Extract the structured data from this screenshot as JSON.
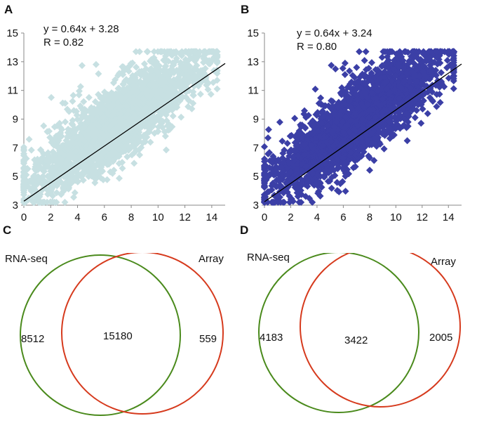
{
  "chart_data": [
    {
      "panel": "A",
      "type": "scatter",
      "point_color": "#c7e0e2",
      "point_shape": "diamond-icon",
      "line_color": "#000000",
      "xlim": [
        0,
        15
      ],
      "ylim": [
        3,
        15
      ],
      "xticks": [
        "0",
        "2",
        "4",
        "6",
        "8",
        "10",
        "12",
        "14"
      ],
      "yticks": [
        "3",
        "5",
        "7",
        "9",
        "11",
        "13",
        "15"
      ],
      "fit": {
        "slope": 0.64,
        "intercept": 3.28
      },
      "equation_label": "y = 0.64x + 3.28",
      "r_label": "R = 0.82",
      "point_spread": 1.2,
      "n_points": 2600,
      "seed": 17
    },
    {
      "panel": "B",
      "type": "scatter",
      "point_color": "#3b3fa6",
      "point_shape": "diamond-icon",
      "line_color": "#000000",
      "xlim": [
        0,
        15
      ],
      "ylim": [
        3,
        15
      ],
      "xticks": [
        "0",
        "2",
        "4",
        "6",
        "8",
        "10",
        "12",
        "14"
      ],
      "yticks": [
        "3",
        "5",
        "7",
        "9",
        "11",
        "13",
        "15"
      ],
      "fit": {
        "slope": 0.64,
        "intercept": 3.24
      },
      "equation_label": "y = 0.64x + 3.24",
      "r_label": "R = 0.80",
      "point_spread": 1.25,
      "n_points": 2600,
      "seed": 29
    },
    {
      "panel": "C",
      "type": "venn",
      "sets": [
        {
          "name": "RNA-seq",
          "only": "8512",
          "color": "#4a8a1c"
        },
        {
          "name": "Array",
          "only": "559",
          "color": "#d63a1d"
        }
      ],
      "intersection": "15180"
    },
    {
      "panel": "D",
      "type": "venn",
      "sets": [
        {
          "name": "RNA-seq",
          "only": "4183",
          "color": "#4a8a1c"
        },
        {
          "name": "Array",
          "only": "2005",
          "color": "#d63a1d"
        }
      ],
      "intersection": "3422"
    }
  ]
}
